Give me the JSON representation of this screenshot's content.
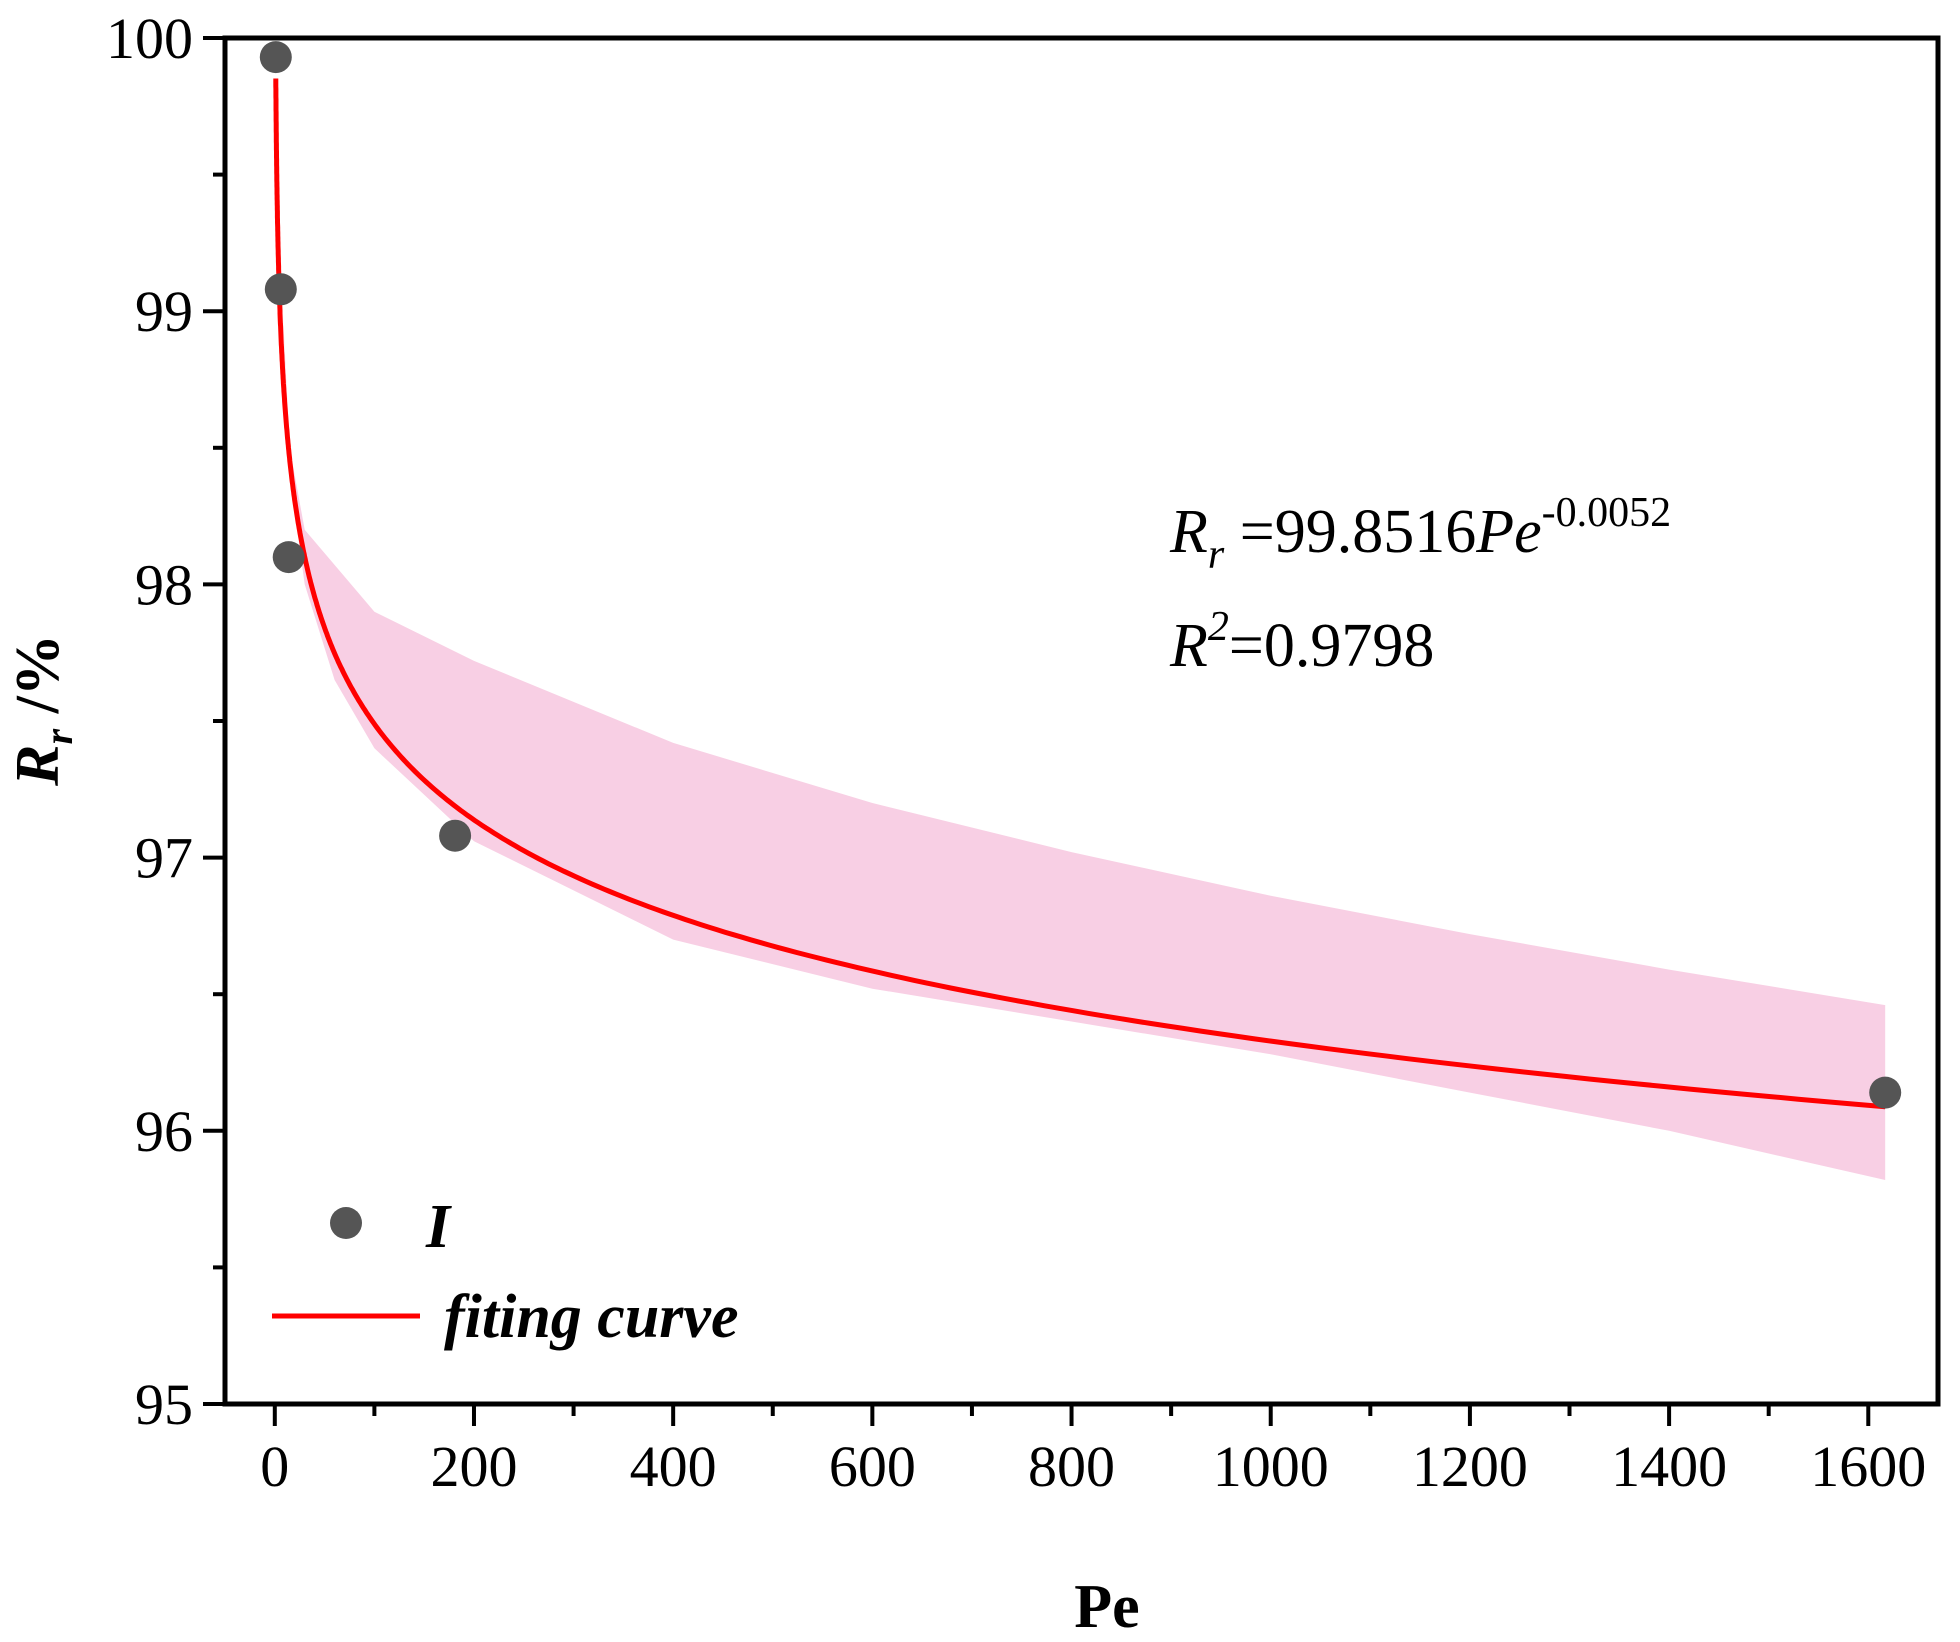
{
  "chart_data": {
    "type": "scatter",
    "xlabel": "Pe",
    "ylabel_main": "R",
    "ylabel_sub": "r",
    "ylabel_unit": " /%",
    "xlim": [
      -50,
      1670
    ],
    "ylim": [
      95,
      100
    ],
    "xticks": [
      0,
      200,
      400,
      600,
      800,
      1000,
      1200,
      1400,
      1600
    ],
    "yticks": [
      95,
      96,
      97,
      98,
      99,
      100
    ],
    "series": [
      {
        "name": "I",
        "kind": "scatter",
        "color": "#555555",
        "points": [
          {
            "x": 1,
            "y": 99.93
          },
          {
            "x": 6,
            "y": 99.08
          },
          {
            "x": 14,
            "y": 98.1
          },
          {
            "x": 181,
            "y": 97.08
          },
          {
            "x": 1617,
            "y": 96.14
          }
        ]
      },
      {
        "name": "fiting curve",
        "kind": "line",
        "color": "#ff0000",
        "model": {
          "a": 99.8516,
          "b": -0.0052
        },
        "x_range": [
          1,
          1617
        ]
      }
    ],
    "band": {
      "color": "#f8cfe4",
      "upper": [
        [
          8,
          99.0
        ],
        [
          15,
          98.5
        ],
        [
          30,
          98.2
        ],
        [
          100,
          97.9
        ],
        [
          200,
          97.72
        ],
        [
          400,
          97.42
        ],
        [
          600,
          97.2
        ],
        [
          800,
          97.02
        ],
        [
          1000,
          96.86
        ],
        [
          1200,
          96.72
        ],
        [
          1400,
          96.59
        ],
        [
          1617,
          96.46
        ]
      ],
      "lower": [
        [
          8,
          99.0
        ],
        [
          15,
          98.4
        ],
        [
          30,
          98.0
        ],
        [
          60,
          97.65
        ],
        [
          100,
          97.4
        ],
        [
          200,
          97.06
        ],
        [
          400,
          96.7
        ],
        [
          600,
          96.52
        ],
        [
          800,
          96.4
        ],
        [
          1000,
          96.28
        ],
        [
          1200,
          96.14
        ],
        [
          1400,
          96.0
        ],
        [
          1617,
          95.82
        ]
      ]
    },
    "equation": {
      "line1_R": "R",
      "line1_sub": "r",
      "line1_mid": " =99.8516",
      "line1_Pe": "Pe",
      "line1_exp": "-0.0052",
      "line2_R": "R",
      "line2_sup": "2",
      "line2_val": "=0.9798"
    },
    "legend": {
      "position": "bottom-left",
      "items": [
        {
          "label": "I",
          "marker": "circle"
        },
        {
          "label": "fiting curve",
          "marker": "line"
        }
      ]
    }
  }
}
